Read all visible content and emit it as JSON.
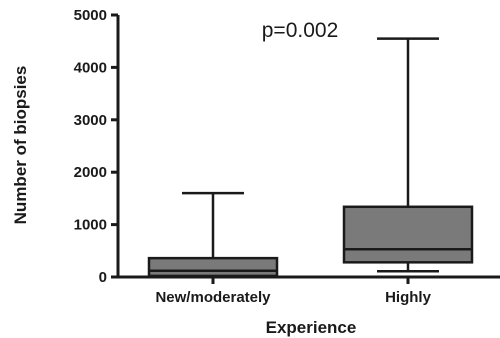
{
  "chart_data": {
    "type": "box",
    "xlabel": "Experience",
    "ylabel": "Number of biopsies",
    "annotation": "p=0.002",
    "ylim": [
      0,
      5000
    ],
    "yticks": [
      0,
      1000,
      2000,
      3000,
      4000,
      5000
    ],
    "categories": [
      "New/moderately",
      "Highly"
    ],
    "boxes": [
      {
        "category": "New/moderately",
        "min": 0,
        "q1": 20,
        "median": 120,
        "q3": 360,
        "max": 1600
      },
      {
        "category": "Highly",
        "min": 110,
        "q1": 280,
        "median": 530,
        "q3": 1340,
        "max": 4550
      }
    ],
    "box_fill": "#7a7a7a",
    "line_color": "#1a1a1a",
    "grid": false
  }
}
